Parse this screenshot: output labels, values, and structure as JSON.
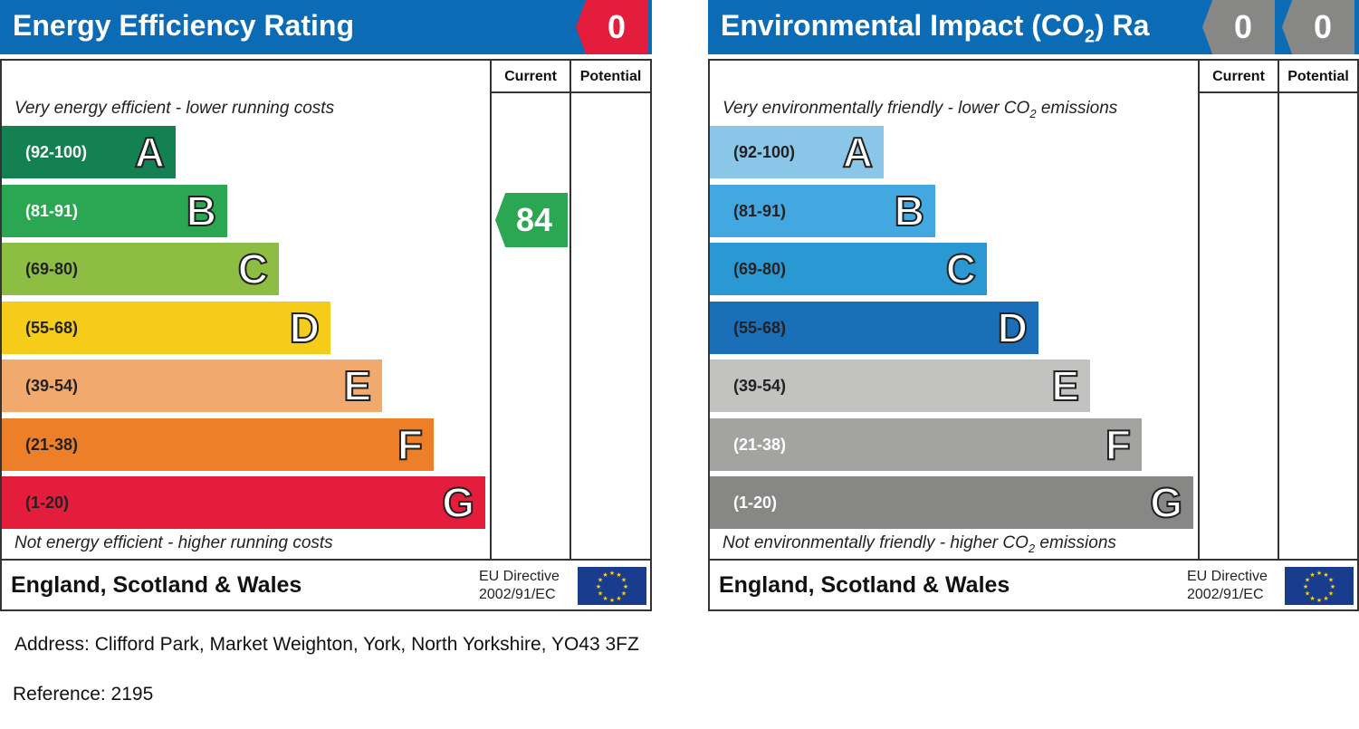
{
  "chart_data": [
    {
      "type": "bar",
      "title": "Energy Efficiency Rating",
      "header_value": "0",
      "columns": [
        "Current",
        "Potential"
      ],
      "top_caption": "Very energy efficient - lower running costs",
      "bottom_caption": "Not energy efficient - higher running costs",
      "categories": [
        "(92-100)",
        "(81-91)",
        "(69-80)",
        "(55-68)",
        "(39-54)",
        "(21-38)",
        "(1-20)"
      ],
      "letters": [
        "A",
        "B",
        "C",
        "D",
        "E",
        "F",
        "G"
      ],
      "colors": [
        "#138152",
        "#2ba754",
        "#8dbe43",
        "#f5cc1a",
        "#f2a96e",
        "#ec7f27",
        "#e41d3c"
      ],
      "range_colors": [
        "#ffffff",
        "#ffffff",
        "#222222",
        "#222222",
        "#222222",
        "#222222",
        "#222222"
      ],
      "ratings": {
        "current": 84,
        "current_band": "B",
        "current_color": "#2ba754"
      },
      "footer": "England, Scotland & Wales",
      "eu_directive": [
        "EU Directive",
        "2002/91/EC"
      ]
    },
    {
      "type": "bar",
      "title": "Environmental Impact (CO",
      "title_sub": "2",
      "title_suffix": ") Ra",
      "header_values": [
        "0",
        "0"
      ],
      "columns": [
        "Current",
        "Potential"
      ],
      "top_caption": "Very environmentally friendly - lower CO",
      "top_caption_end": " emissions",
      "bottom_caption": "Not environmentally friendly - higher CO",
      "bottom_caption_end": " emissions",
      "caption_sub": "2",
      "categories": [
        "(92-100)",
        "(81-91)",
        "(69-80)",
        "(55-68)",
        "(39-54)",
        "(21-38)",
        "(1-20)"
      ],
      "letters": [
        "A",
        "B",
        "C",
        "D",
        "E",
        "F",
        "G"
      ],
      "colors": [
        "#8ac6e8",
        "#44a8e0",
        "#2a98d2",
        "#1a6fb8",
        "#c2c2c0",
        "#a3a3a1",
        "#878786"
      ],
      "range_colors": [
        "#222222",
        "#222222",
        "#222222",
        "#222222",
        "#222222",
        "#ffffff",
        "#ffffff"
      ],
      "footer": "England, Scotland & Wales",
      "eu_directive": [
        "EU Directive",
        "2002/91/EC"
      ]
    }
  ],
  "address": "Address: Clifford Park, Market Weighton, York, North Yorkshire, YO43 3FZ",
  "reference": "Reference: 2195",
  "badge_colors": {
    "energy_header": "#e41d3c",
    "co2_header": "#878786"
  }
}
